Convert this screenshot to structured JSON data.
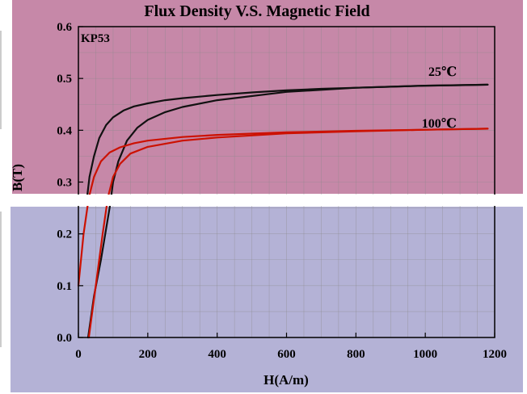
{
  "chart_data": {
    "type": "line",
    "title": "Flux Density V.S. Magnetic Field",
    "panel_label": "KP53",
    "xlabel": "H(A/m)",
    "ylabel": "B(T)",
    "xlim": [
      0,
      1200
    ],
    "ylim": [
      0.0,
      0.6
    ],
    "xticks": [
      0,
      200,
      400,
      600,
      800,
      1000,
      1200
    ],
    "yticks": [
      0.0,
      0.1,
      0.2,
      0.3,
      0.4,
      0.5,
      0.6
    ],
    "xtick_labels": [
      "0",
      "200",
      "400",
      "600",
      "800",
      "1000",
      "1200"
    ],
    "ytick_labels": [
      "0.0",
      "0.1",
      "0.2",
      "0.3",
      "0.4",
      "0.5",
      "0.6"
    ],
    "grid": true,
    "series": [
      {
        "name": "25℃",
        "color": "#111111",
        "upper": [
          [
            25,
            0.27
          ],
          [
            32,
            0.31
          ],
          [
            45,
            0.35
          ],
          [
            60,
            0.385
          ],
          [
            80,
            0.41
          ],
          [
            100,
            0.425
          ],
          [
            130,
            0.438
          ],
          [
            160,
            0.446
          ],
          [
            200,
            0.452
          ],
          [
            250,
            0.458
          ],
          [
            300,
            0.462
          ],
          [
            400,
            0.468
          ],
          [
            500,
            0.473
          ],
          [
            600,
            0.477
          ],
          [
            700,
            0.48
          ],
          [
            800,
            0.482
          ],
          [
            900,
            0.484
          ],
          [
            1000,
            0.486
          ],
          [
            1100,
            0.487
          ],
          [
            1180,
            0.488
          ]
        ],
        "lower": [
          [
            28,
            0.0
          ],
          [
            45,
            0.08
          ],
          [
            65,
            0.15
          ],
          [
            80,
            0.21
          ],
          [
            90,
            0.25
          ],
          [
            100,
            0.3
          ],
          [
            115,
            0.34
          ],
          [
            140,
            0.38
          ],
          [
            170,
            0.405
          ],
          [
            200,
            0.42
          ],
          [
            250,
            0.435
          ],
          [
            300,
            0.445
          ],
          [
            400,
            0.458
          ],
          [
            600,
            0.474
          ],
          [
            800,
            0.482
          ],
          [
            1000,
            0.486
          ],
          [
            1180,
            0.488
          ]
        ]
      },
      {
        "name": "100℃",
        "color": "#cc1100",
        "upper": [
          [
            0,
            0.1
          ],
          [
            15,
            0.2
          ],
          [
            30,
            0.27
          ],
          [
            45,
            0.31
          ],
          [
            65,
            0.34
          ],
          [
            90,
            0.357
          ],
          [
            120,
            0.367
          ],
          [
            160,
            0.375
          ],
          [
            200,
            0.38
          ],
          [
            300,
            0.387
          ],
          [
            400,
            0.391
          ],
          [
            600,
            0.396
          ],
          [
            800,
            0.399
          ],
          [
            1000,
            0.401
          ],
          [
            1180,
            0.403
          ]
        ],
        "lower": [
          [
            30,
            0.0
          ],
          [
            50,
            0.1
          ],
          [
            70,
            0.2
          ],
          [
            85,
            0.27
          ],
          [
            100,
            0.31
          ],
          [
            120,
            0.335
          ],
          [
            150,
            0.355
          ],
          [
            200,
            0.368
          ],
          [
            300,
            0.38
          ],
          [
            400,
            0.386
          ],
          [
            600,
            0.394
          ],
          [
            800,
            0.398
          ],
          [
            1000,
            0.401
          ],
          [
            1180,
            0.403
          ]
        ]
      }
    ],
    "annotations": [
      {
        "text": "25℃",
        "x": 1050,
        "y": 0.505
      },
      {
        "text": "100℃",
        "x": 1040,
        "y": 0.405
      }
    ],
    "background": {
      "upper_color": "#c688a8",
      "lower_color": "#b4b2d6"
    }
  }
}
